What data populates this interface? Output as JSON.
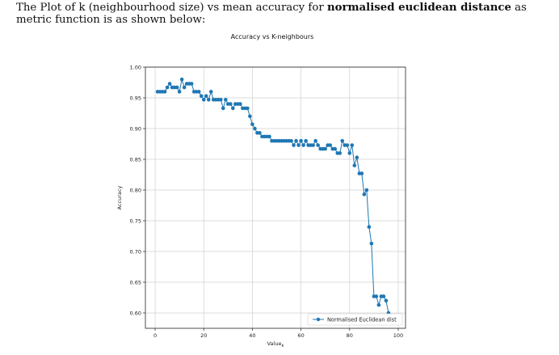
{
  "intro": {
    "part1": "The Plot of k (neighbourhood size) vs mean accuracy for ",
    "bold": "normalised euclidean distance",
    "part2": " as metric function is as shown below:"
  },
  "chart_data": {
    "type": "line",
    "title": "Accuracy vs K-neighbours",
    "xlabel": "Value",
    "xlabel_sub": "K",
    "ylabel": "Accuracy",
    "xlim": [
      -4,
      103
    ],
    "ylim": [
      0.575,
      1.0
    ],
    "xticks": [
      0,
      20,
      40,
      60,
      80,
      100
    ],
    "yticks": [
      0.6,
      0.65,
      0.7,
      0.75,
      0.8,
      0.85,
      0.9,
      0.95,
      1.0
    ],
    "ytick_labels": [
      "0.60",
      "0.65",
      "0.70",
      "0.75",
      "0.80",
      "0.85",
      "0.90",
      "0.95",
      "1.00"
    ],
    "grid": true,
    "legend_position": "lower-right",
    "series": [
      {
        "name": "Normalised Euclidean dist",
        "color": "#1f77b4",
        "x": [
          1,
          2,
          3,
          4,
          5,
          6,
          7,
          8,
          9,
          10,
          11,
          12,
          13,
          14,
          15,
          16,
          17,
          18,
          19,
          20,
          21,
          22,
          23,
          24,
          25,
          26,
          27,
          28,
          29,
          30,
          31,
          32,
          33,
          34,
          35,
          36,
          37,
          38,
          39,
          40,
          41,
          42,
          43,
          44,
          45,
          46,
          47,
          48,
          49,
          50,
          51,
          52,
          53,
          54,
          55,
          56,
          57,
          58,
          59,
          60,
          61,
          62,
          63,
          64,
          65,
          66,
          67,
          68,
          69,
          70,
          71,
          72,
          73,
          74,
          75,
          76,
          77,
          78,
          79,
          80,
          81,
          82,
          83,
          84,
          85,
          86,
          87,
          88,
          89,
          90,
          91,
          92,
          93,
          94,
          95,
          96,
          97
        ],
        "y": [
          0.96,
          0.96,
          0.96,
          0.96,
          0.967,
          0.973,
          0.967,
          0.967,
          0.967,
          0.96,
          0.98,
          0.967,
          0.973,
          0.973,
          0.973,
          0.96,
          0.96,
          0.96,
          0.953,
          0.947,
          0.953,
          0.947,
          0.96,
          0.947,
          0.947,
          0.947,
          0.947,
          0.933,
          0.947,
          0.94,
          0.94,
          0.933,
          0.94,
          0.94,
          0.94,
          0.933,
          0.933,
          0.933,
          0.92,
          0.907,
          0.9,
          0.893,
          0.893,
          0.887,
          0.887,
          0.887,
          0.887,
          0.88,
          0.88,
          0.88,
          0.88,
          0.88,
          0.88,
          0.88,
          0.88,
          0.88,
          0.873,
          0.88,
          0.873,
          0.88,
          0.873,
          0.88,
          0.873,
          0.873,
          0.873,
          0.88,
          0.873,
          0.867,
          0.867,
          0.867,
          0.873,
          0.873,
          0.867,
          0.867,
          0.86,
          0.86,
          0.88,
          0.873,
          0.873,
          0.86,
          0.873,
          0.84,
          0.853,
          0.827,
          0.827,
          0.793,
          0.8,
          0.74,
          0.713,
          0.627,
          0.627,
          0.613,
          0.627,
          0.627,
          0.62,
          0.6,
          0.587
        ]
      }
    ]
  }
}
